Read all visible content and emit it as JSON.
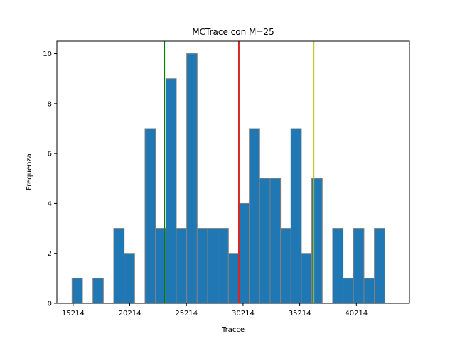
{
  "chart_data": {
    "type": "bar",
    "title": "MCTrace con M=25",
    "xlabel": "Tracce",
    "ylabel": "Frequenza",
    "xlim": [
      13780,
      44900
    ],
    "ylim": [
      0,
      10.5
    ],
    "bin_width": 920,
    "bins": [
      {
        "x0": 15120,
        "count": 1
      },
      {
        "x0": 16040,
        "count": 0
      },
      {
        "x0": 16960,
        "count": 1
      },
      {
        "x0": 17880,
        "count": 0
      },
      {
        "x0": 18800,
        "count": 3
      },
      {
        "x0": 19720,
        "count": 2
      },
      {
        "x0": 20640,
        "count": 0
      },
      {
        "x0": 21560,
        "count": 7
      },
      {
        "x0": 22480,
        "count": 3
      },
      {
        "x0": 23400,
        "count": 9
      },
      {
        "x0": 24320,
        "count": 3
      },
      {
        "x0": 25240,
        "count": 10
      },
      {
        "x0": 26160,
        "count": 3
      },
      {
        "x0": 27080,
        "count": 3
      },
      {
        "x0": 28000,
        "count": 3
      },
      {
        "x0": 28920,
        "count": 2
      },
      {
        "x0": 29840,
        "count": 4
      },
      {
        "x0": 30760,
        "count": 7
      },
      {
        "x0": 31680,
        "count": 5
      },
      {
        "x0": 32600,
        "count": 5
      },
      {
        "x0": 33520,
        "count": 3
      },
      {
        "x0": 34440,
        "count": 7
      },
      {
        "x0": 35360,
        "count": 2
      },
      {
        "x0": 36280,
        "count": 5
      },
      {
        "x0": 37200,
        "count": 0
      },
      {
        "x0": 38120,
        "count": 3
      },
      {
        "x0": 39040,
        "count": 1
      },
      {
        "x0": 39960,
        "count": 3
      },
      {
        "x0": 40880,
        "count": 1
      },
      {
        "x0": 41800,
        "count": 3
      }
    ],
    "x_ticks": [
      15214,
      20214,
      25214,
      30214,
      35214,
      40214
    ],
    "x_tick_labels": [
      "15214",
      "20214",
      "25214",
      "30214",
      "35214",
      "40214"
    ],
    "y_ticks": [
      0,
      2,
      4,
      6,
      8,
      10
    ],
    "y_tick_labels": [
      "0",
      "2",
      "4",
      "6",
      "8",
      "10"
    ],
    "vlines": [
      {
        "x": 23260,
        "color": "#008000"
      },
      {
        "x": 29840,
        "color": "#d62728"
      },
      {
        "x": 36440,
        "color": "#bfbf00"
      }
    ],
    "colors": {
      "bar_fill": "#1f77b4",
      "bar_edge": "#808080"
    },
    "grid": false,
    "legend": "none"
  }
}
